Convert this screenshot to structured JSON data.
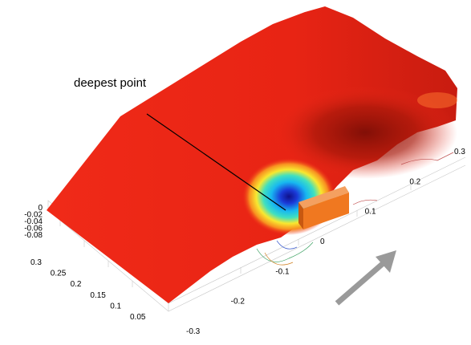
{
  "chart_data": {
    "type": "surface",
    "annotation": "deepest point",
    "x_ticks": [
      "-0.3",
      "-0.2",
      "-0.1",
      "0",
      "0.1",
      "0.2",
      "0.3"
    ],
    "y_ticks": [
      "0.3",
      "0.25",
      "0.2",
      "0.15",
      "0.1",
      "0.05"
    ],
    "z_ticks": [
      "0",
      "-0.02",
      "-0.04",
      "-0.06",
      "-0.08"
    ],
    "x_range": [
      -0.3,
      0.3
    ],
    "y_range": [
      0.05,
      0.3
    ],
    "z_range": [
      -0.08,
      0
    ],
    "deepest_point": {
      "z": -0.08
    },
    "grid": true,
    "colors": {
      "surface": "#ee2a18",
      "surface_dark": "#8a1208",
      "scour_deep": "#1a2ec8",
      "scour_mid": "#18c8f0",
      "scour_shallow": "#f8e830",
      "obstacle": "#f07820",
      "arrow": "#9a9a9a"
    }
  }
}
